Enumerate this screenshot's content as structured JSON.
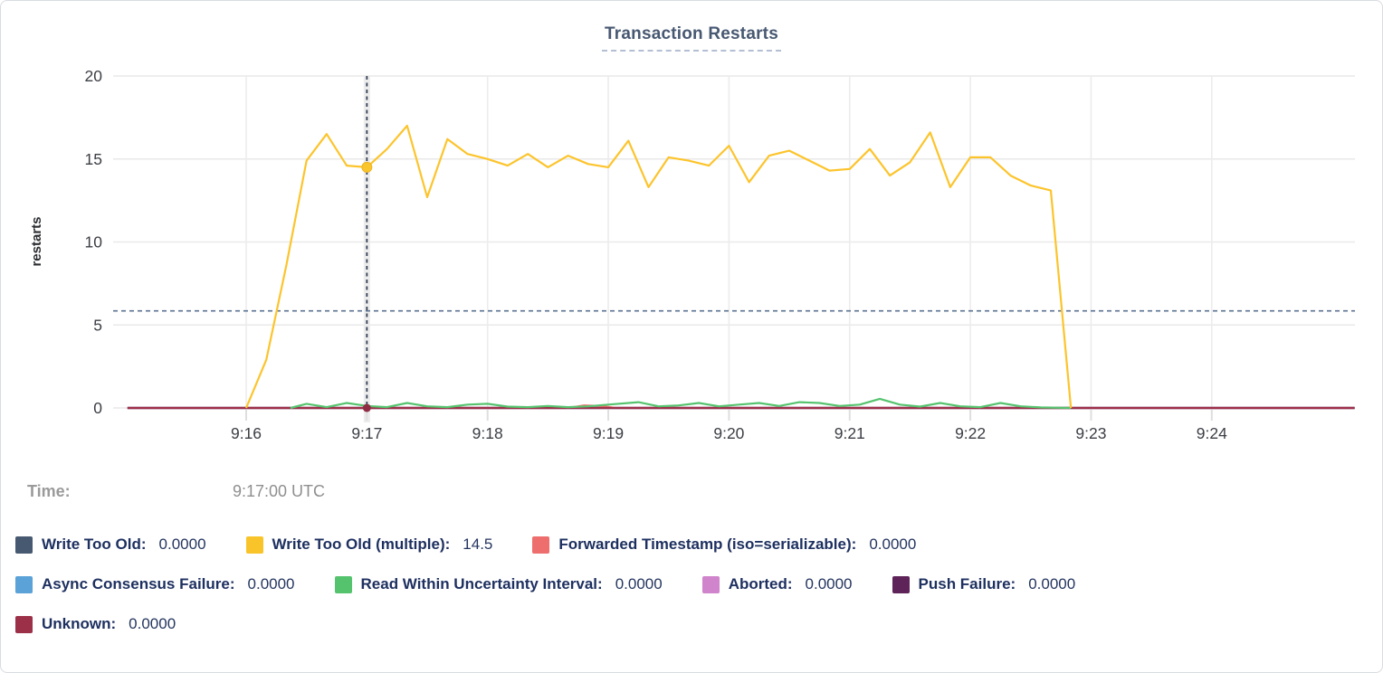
{
  "title": "Transaction Restarts",
  "time_row": {
    "label": "Time:",
    "value": "9:17:00 UTC"
  },
  "axes": {
    "y_label": "restarts",
    "y_ticks": [
      "0",
      "5",
      "10",
      "15",
      "20"
    ],
    "x_ticks": [
      "9:16",
      "9:17",
      "9:18",
      "9:19",
      "9:20",
      "9:21",
      "9:22",
      "9:23",
      "9:24"
    ]
  },
  "legend": {
    "rows": [
      [
        {
          "label": "Write Too Old:",
          "value": "0.0000",
          "color": "#475970"
        },
        {
          "label": "Write Too Old (multiple):",
          "value": "14.5",
          "color": "#f8c42a"
        },
        {
          "label": "Forwarded Timestamp (iso=serializable):",
          "value": "0.0000",
          "color": "#ed6e6c"
        }
      ],
      [
        {
          "label": "Async Consensus Failure:",
          "value": "0.0000",
          "color": "#5aa2d8"
        },
        {
          "label": "Read Within Uncertainty Interval:",
          "value": "0.0000",
          "color": "#55c36e"
        },
        {
          "label": "Aborted:",
          "value": "0.0000",
          "color": "#d084cb"
        },
        {
          "label": "Push Failure:",
          "value": "0.0000",
          "color": "#5e2358"
        }
      ],
      [
        {
          "label": "Unknown:",
          "value": "0.0000",
          "color": "#9c3049"
        }
      ]
    ]
  },
  "chart_data": {
    "type": "line",
    "title": "Transaction Restarts",
    "xlabel": "",
    "ylabel": "restarts",
    "ylim": [
      0,
      20
    ],
    "y_ticks": [
      0,
      5,
      10,
      15,
      20
    ],
    "x_ticks": [
      "9:16",
      "9:17",
      "9:18",
      "9:19",
      "9:20",
      "9:21",
      "9:22",
      "9:23",
      "9:24"
    ],
    "x_is_time": true,
    "seconds_per_tick": 60,
    "grid": true,
    "legend_position": "bottom",
    "reference_line_y": 5.85,
    "crosshair": {
      "x_tick": "9:17",
      "time": "9:17:00 UTC",
      "highlight_value": 14.5
    },
    "hover_points": [
      {
        "series": "Write Too Old (multiple)",
        "value": 14.5
      },
      {
        "series": "Unknown",
        "value": 0.0
      }
    ],
    "series": [
      {
        "name": "Write Too Old",
        "color": "#475970",
        "points": [
          [
            -59,
            0
          ],
          [
            551,
            0
          ]
        ]
      },
      {
        "name": "Async Consensus Failure",
        "color": "#5aa2d8",
        "points": [
          [
            -59,
            0
          ],
          [
            551,
            0
          ]
        ]
      },
      {
        "name": "Aborted",
        "color": "#d084cb",
        "points": [
          [
            -59,
            0
          ],
          [
            551,
            0
          ]
        ]
      },
      {
        "name": "Push Failure",
        "color": "#5e2358",
        "points": [
          [
            -59,
            0
          ],
          [
            551,
            0
          ]
        ]
      },
      {
        "name": "Forwarded Timestamp (iso=serializable)",
        "color": "#ed6e6c",
        "points": [
          [
            -59,
            0
          ],
          [
            160,
            0
          ],
          [
            168,
            0.15
          ],
          [
            176,
            0.12
          ],
          [
            184,
            0
          ],
          [
            551,
            0
          ]
        ]
      },
      {
        "name": "Unknown",
        "color": "#9c3049",
        "points": [
          [
            -59,
            0
          ],
          [
            551,
            0
          ]
        ]
      },
      {
        "name": "Read Within Uncertainty Interval",
        "color": "#55c36e",
        "points": [
          [
            22,
            0
          ],
          [
            30,
            0.25
          ],
          [
            40,
            0.05
          ],
          [
            50,
            0.3
          ],
          [
            60,
            0.12
          ],
          [
            70,
            0.05
          ],
          [
            80,
            0.3
          ],
          [
            90,
            0.1
          ],
          [
            100,
            0.05
          ],
          [
            110,
            0.2
          ],
          [
            120,
            0.25
          ],
          [
            130,
            0.08
          ],
          [
            140,
            0.05
          ],
          [
            150,
            0.12
          ],
          [
            160,
            0.05
          ],
          [
            170,
            0.1
          ],
          [
            180,
            0.2
          ],
          [
            195,
            0.35
          ],
          [
            205,
            0.1
          ],
          [
            215,
            0.15
          ],
          [
            225,
            0.3
          ],
          [
            235,
            0.1
          ],
          [
            245,
            0.2
          ],
          [
            255,
            0.3
          ],
          [
            265,
            0.12
          ],
          [
            275,
            0.35
          ],
          [
            285,
            0.3
          ],
          [
            295,
            0.12
          ],
          [
            305,
            0.2
          ],
          [
            315,
            0.55
          ],
          [
            325,
            0.2
          ],
          [
            335,
            0.08
          ],
          [
            345,
            0.3
          ],
          [
            355,
            0.1
          ],
          [
            365,
            0.05
          ],
          [
            375,
            0.3
          ],
          [
            385,
            0.1
          ],
          [
            395,
            0.03
          ],
          [
            410,
            0
          ]
        ]
      },
      {
        "name": "Write Too Old (multiple)",
        "color": "#fcc42c",
        "points": [
          [
            0,
            0
          ],
          [
            10,
            2.9
          ],
          [
            20,
            8.6
          ],
          [
            30,
            14.9
          ],
          [
            40,
            16.5
          ],
          [
            50,
            14.6
          ],
          [
            60,
            14.5
          ],
          [
            70,
            15.6
          ],
          [
            80,
            17.0
          ],
          [
            90,
            12.7
          ],
          [
            100,
            16.2
          ],
          [
            110,
            15.3
          ],
          [
            120,
            15.0
          ],
          [
            130,
            14.6
          ],
          [
            140,
            15.3
          ],
          [
            150,
            14.5
          ],
          [
            160,
            15.2
          ],
          [
            170,
            14.7
          ],
          [
            180,
            14.5
          ],
          [
            190,
            16.1
          ],
          [
            200,
            13.3
          ],
          [
            210,
            15.1
          ],
          [
            220,
            14.9
          ],
          [
            230,
            14.6
          ],
          [
            240,
            15.8
          ],
          [
            250,
            13.6
          ],
          [
            260,
            15.2
          ],
          [
            270,
            15.5
          ],
          [
            280,
            14.9
          ],
          [
            290,
            14.3
          ],
          [
            300,
            14.4
          ],
          [
            310,
            15.6
          ],
          [
            320,
            14.0
          ],
          [
            330,
            14.8
          ],
          [
            340,
            16.6
          ],
          [
            350,
            13.3
          ],
          [
            360,
            15.1
          ],
          [
            370,
            15.1
          ],
          [
            380,
            14.0
          ],
          [
            390,
            13.4
          ],
          [
            400,
            13.1
          ],
          [
            410,
            0
          ]
        ]
      }
    ]
  }
}
